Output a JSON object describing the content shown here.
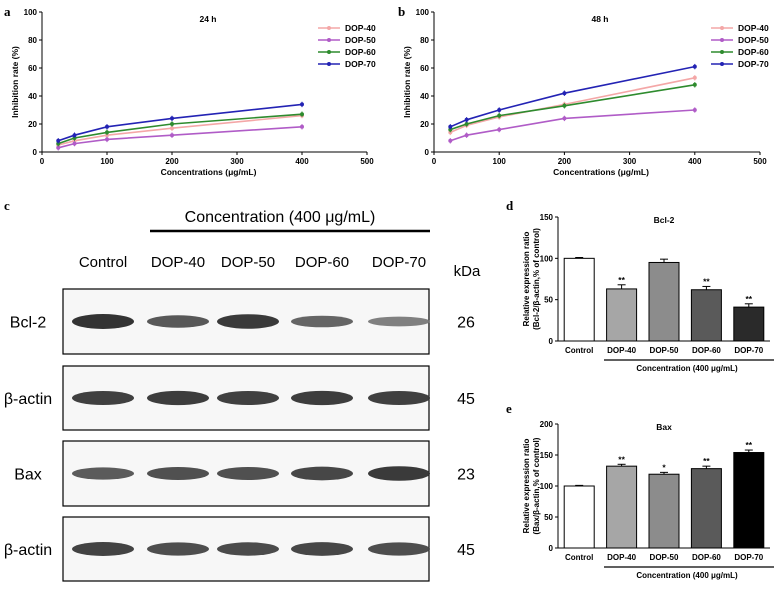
{
  "panels": {
    "a": "a",
    "b": "b",
    "c": "c",
    "d": "d",
    "e": "e"
  },
  "chart_data": [
    {
      "id": "a",
      "type": "line",
      "title": "24 h",
      "xlabel": "Concentrations (μg/mL)",
      "ylabel": "Inhibition rate (%)",
      "xlim": [
        0,
        500
      ],
      "ylim": [
        0,
        100
      ],
      "xticks": [
        0,
        100,
        200,
        300,
        400,
        500
      ],
      "yticks": [
        0,
        20,
        40,
        60,
        80,
        100
      ],
      "x": [
        25,
        50,
        100,
        200,
        400
      ],
      "legend_position": "top-right",
      "series": [
        {
          "name": "DOP-40",
          "color": "#f4a7a7",
          "values": [
            5,
            8,
            12,
            17,
            26
          ]
        },
        {
          "name": "DOP-50",
          "color": "#b05cc7",
          "values": [
            3,
            6,
            9,
            12,
            18
          ]
        },
        {
          "name": "DOP-60",
          "color": "#2e8b2e",
          "values": [
            6,
            10,
            14,
            20,
            27
          ]
        },
        {
          "name": "DOP-70",
          "color": "#2323b4",
          "values": [
            8,
            12,
            18,
            24,
            34
          ]
        }
      ]
    },
    {
      "id": "b",
      "type": "line",
      "title": "48 h",
      "xlabel": "Concentrations (μg/mL)",
      "ylabel": "Inhibition rate (%)",
      "xlim": [
        0,
        500
      ],
      "ylim": [
        0,
        100
      ],
      "xticks": [
        0,
        100,
        200,
        300,
        400,
        500
      ],
      "yticks": [
        0,
        20,
        40,
        60,
        80,
        100
      ],
      "x": [
        25,
        50,
        100,
        200,
        400
      ],
      "legend_position": "top-right",
      "series": [
        {
          "name": "DOP-40",
          "color": "#f4a7a7",
          "values": [
            14,
            19,
            25,
            34,
            53
          ]
        },
        {
          "name": "DOP-50",
          "color": "#b05cc7",
          "values": [
            8,
            12,
            16,
            24,
            30
          ]
        },
        {
          "name": "DOP-60",
          "color": "#2e8b2e",
          "values": [
            16,
            20,
            26,
            33,
            48
          ]
        },
        {
          "name": "DOP-70",
          "color": "#2323b4",
          "values": [
            18,
            23,
            30,
            42,
            61
          ]
        }
      ]
    },
    {
      "id": "d",
      "type": "bar",
      "title": "Bcl-2",
      "ylabel_lines": [
        "Relative expression ratio",
        "(Bcl-2/β-actin,% of control)"
      ],
      "ylim": [
        0,
        150
      ],
      "yticks": [
        0,
        50,
        100,
        150
      ],
      "categories": [
        "Control",
        "DOP-40",
        "DOP-50",
        "DOP-60",
        "DOP-70"
      ],
      "values": [
        100,
        63,
        95,
        62,
        41
      ],
      "errors": [
        1,
        5,
        4,
        4,
        4
      ],
      "significance": [
        "",
        "**",
        "",
        "**",
        "**"
      ],
      "colors": [
        "#ffffff",
        "#a6a6a6",
        "#8c8c8c",
        "#5a5a5a",
        "#2a2a2a"
      ],
      "group_label": "Concentration (400 μg/mL)"
    },
    {
      "id": "e",
      "type": "bar",
      "title": "Bax",
      "ylabel_lines": [
        "Relative expression ratio",
        "(Bax/β-actin,% of control)"
      ],
      "ylim": [
        0,
        200
      ],
      "yticks": [
        0,
        50,
        100,
        150,
        200
      ],
      "categories": [
        "Control",
        "DOP-40",
        "DOP-50",
        "DOP-60",
        "DOP-70"
      ],
      "values": [
        100,
        132,
        119,
        128,
        154
      ],
      "errors": [
        1,
        3,
        3,
        4,
        4
      ],
      "significance": [
        "",
        "**",
        "*",
        "**",
        "**"
      ],
      "colors": [
        "#ffffff",
        "#a6a6a6",
        "#8c8c8c",
        "#5a5a5a",
        "#000000"
      ],
      "group_label": "Concentration (400 μg/mL)"
    }
  ],
  "blot": {
    "concentration_label": "Concentration (400 μg/mL)",
    "lanes": [
      "Control",
      "DOP-40",
      "DOP-50",
      "DOP-60",
      "DOP-70"
    ],
    "kda_header": "kDa",
    "rows": [
      {
        "label": "Bcl-2",
        "kda": "26",
        "intensity": [
          1.0,
          0.72,
          0.95,
          0.62,
          0.42
        ]
      },
      {
        "label": "β-actin",
        "kda": "45",
        "intensity": [
          0.9,
          0.92,
          0.9,
          0.92,
          0.9
        ]
      },
      {
        "label": "Bax",
        "kda": "23",
        "intensity": [
          0.7,
          0.78,
          0.78,
          0.85,
          0.95
        ]
      },
      {
        "label": "β-actin",
        "kda": "45",
        "intensity": [
          0.88,
          0.8,
          0.82,
          0.85,
          0.8
        ]
      }
    ]
  }
}
